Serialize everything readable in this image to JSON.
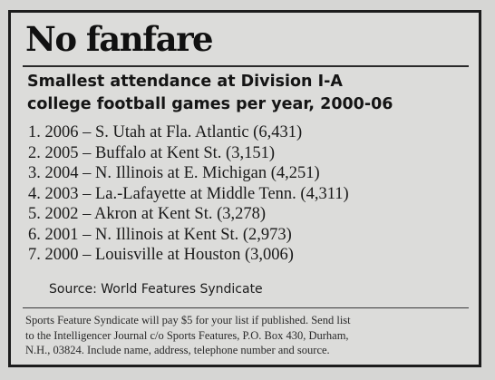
{
  "headline": "No fanfare",
  "subtitle": {
    "line1": "Smallest attendance at Division I-A",
    "line2": "college football games per year, 2000-06"
  },
  "items": [
    "1. 2006 – S. Utah at Fla. Atlantic (6,431)",
    "2. 2005 – Buffalo at Kent St. (3,151)",
    "3. 2004 – N. Illinois at E. Michigan (4,251)",
    "4. 2003 – La.-Lafayette at Middle Tenn. (4,311)",
    "5. 2002 – Akron at Kent St. (3,278)",
    "6. 2001 – N. Illinois at Kent St. (2,973)",
    "7. 2000 – Louisville at Houston (3,006)"
  ],
  "source": "Source: World Features Syndicate",
  "footer": {
    "line1": "Sports Feature Syndicate will pay $5 for your list if published. Send list",
    "line2": "to the Intelligencer Journal c/o Sports Features, P.O. Box 430, Durham,",
    "line3": "N.H., 03824. Include name, address, telephone number and source."
  }
}
